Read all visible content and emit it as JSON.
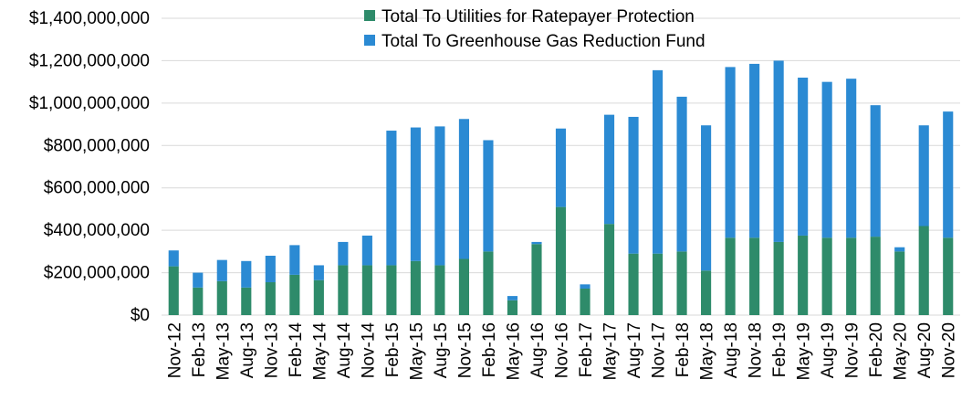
{
  "chart_data": {
    "type": "bar",
    "stacked": true,
    "title": "",
    "xlabel": "",
    "ylabel": "",
    "ylim": [
      0,
      1400000000
    ],
    "yticks": [
      0,
      200000000,
      400000000,
      600000000,
      800000000,
      1000000000,
      1200000000,
      1400000000
    ],
    "ytick_labels": [
      "$0",
      "$200,000,000",
      "$400,000,000",
      "$600,000,000",
      "$800,000,000",
      "$1,000,000,000",
      "$1,200,000,000",
      "$1,400,000,000"
    ],
    "grid": true,
    "legend_position": "top-center",
    "categories": [
      "Nov-12",
      "Feb-13",
      "May-13",
      "Aug-13",
      "Nov-13",
      "Feb-14",
      "May-14",
      "Aug-14",
      "Nov-14",
      "Feb-15",
      "May-15",
      "Aug-15",
      "Nov-15",
      "Feb-16",
      "May-16",
      "Aug-16",
      "Nov-16",
      "Feb-17",
      "May-17",
      "Aug-17",
      "Nov-17",
      "Feb-18",
      "May-18",
      "Aug-18",
      "Nov-18",
      "Feb-19",
      "May-19",
      "Aug-19",
      "Nov-19",
      "Feb-20",
      "May-20",
      "Aug-20",
      "Nov-20"
    ],
    "series": [
      {
        "name": "Total To Utilities for Ratepayer Protection",
        "color": "#2e8b6a",
        "values": [
          230000000,
          130000000,
          160000000,
          130000000,
          155000000,
          190000000,
          165000000,
          235000000,
          235000000,
          235000000,
          255000000,
          235000000,
          265000000,
          300000000,
          70000000,
          335000000,
          510000000,
          125000000,
          430000000,
          290000000,
          290000000,
          300000000,
          210000000,
          365000000,
          365000000,
          345000000,
          375000000,
          365000000,
          365000000,
          370000000,
          300000000,
          420000000,
          365000000
        ]
      },
      {
        "name": "Total To Greenhouse Gas Reduction Fund",
        "color": "#2b8ad3",
        "values": [
          75000000,
          70000000,
          100000000,
          125000000,
          125000000,
          140000000,
          70000000,
          110000000,
          140000000,
          635000000,
          630000000,
          655000000,
          660000000,
          525000000,
          20000000,
          10000000,
          370000000,
          20000000,
          515000000,
          645000000,
          865000000,
          730000000,
          685000000,
          805000000,
          820000000,
          855000000,
          745000000,
          735000000,
          750000000,
          620000000,
          20000000,
          475000000,
          595000000
        ]
      }
    ]
  }
}
